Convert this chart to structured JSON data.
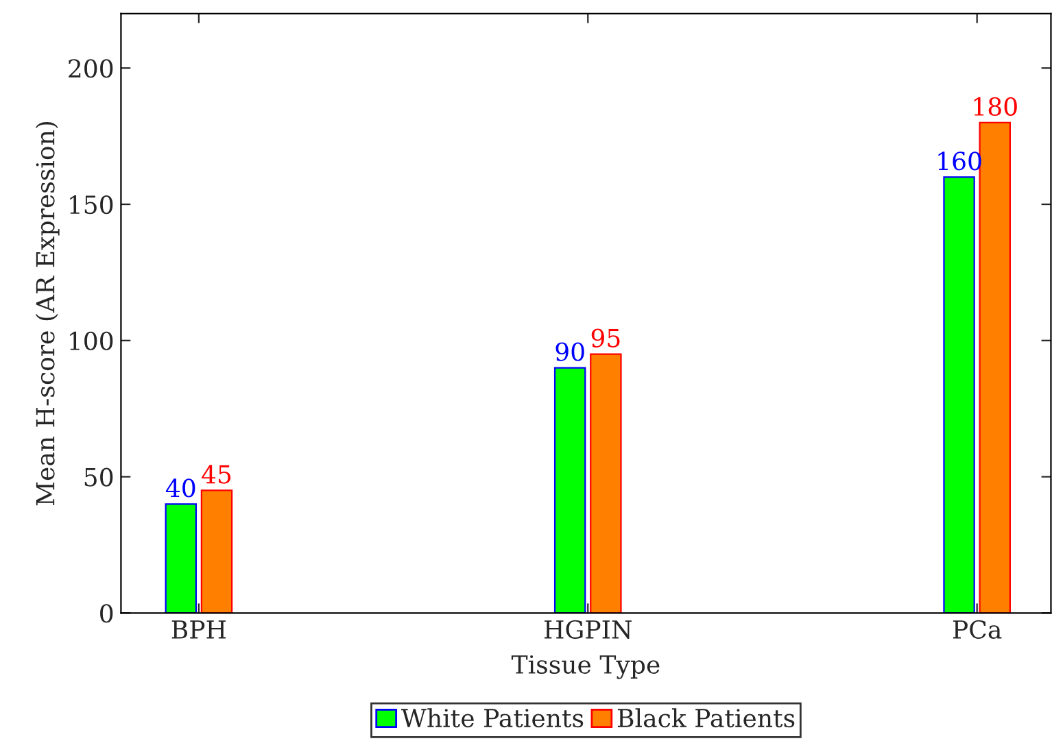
{
  "chart_data": {
    "type": "bar",
    "xlabel": "Tissue Type",
    "ylabel": "Mean H-score (AR Expression)",
    "categories": [
      "BPH",
      "HGPIN",
      "PCa"
    ],
    "series": [
      {
        "name": "White Patients",
        "color": "#00ff00",
        "values": [
          40,
          90,
          160
        ]
      },
      {
        "name": "Black Patients",
        "color": "#ff8000",
        "values": [
          45,
          95,
          180
        ]
      }
    ],
    "ylim": [
      0,
      220
    ],
    "yticks": [
      0,
      50,
      100,
      150,
      200
    ],
    "data_labels": true,
    "legend": "bottom",
    "grid": false
  }
}
